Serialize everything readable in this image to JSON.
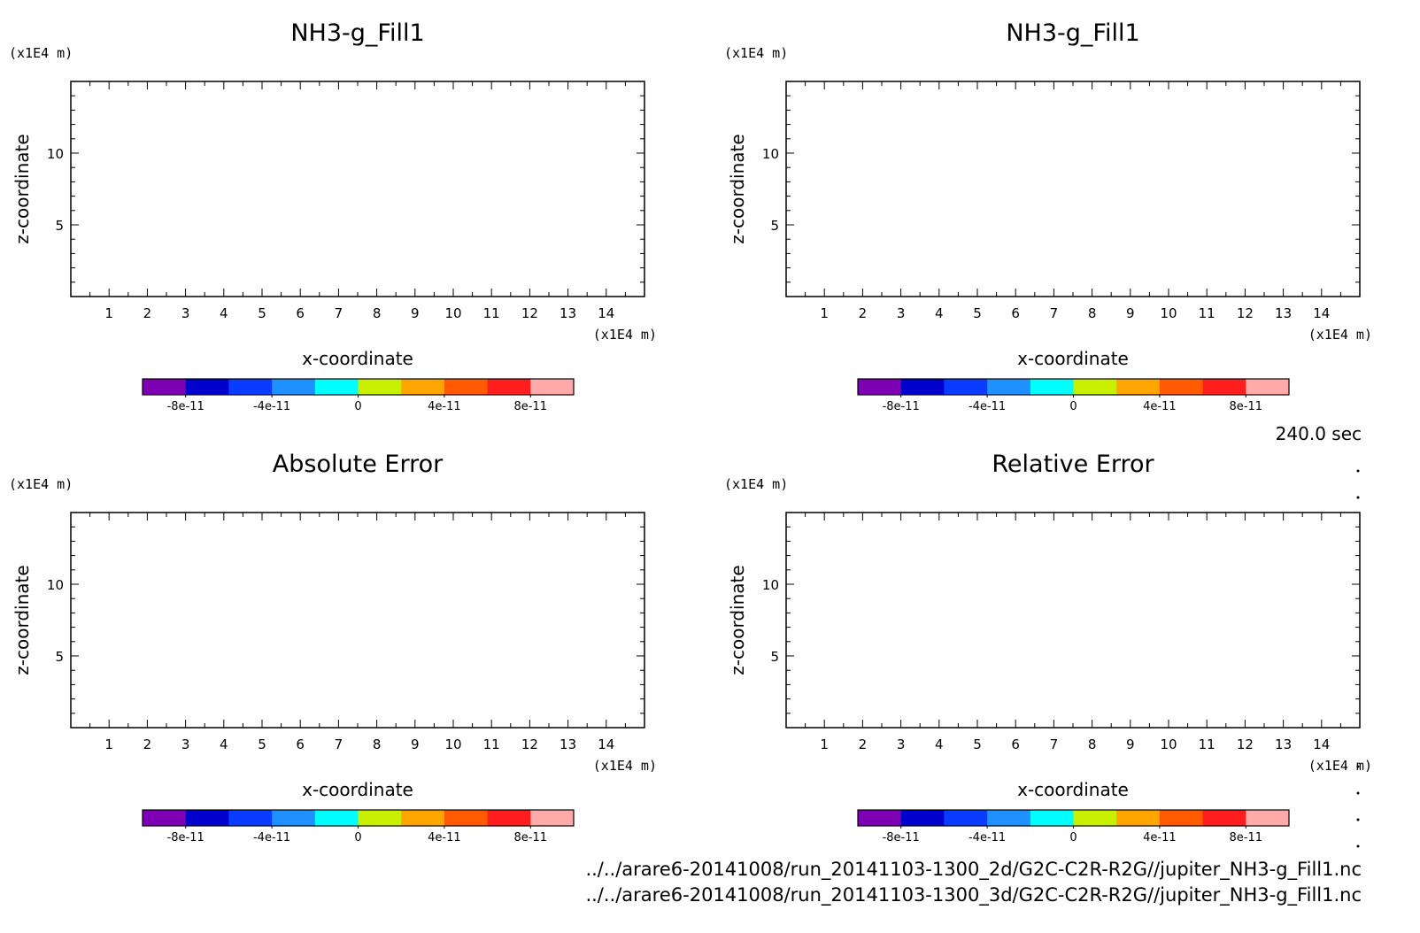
{
  "time_label": "240.0 sec",
  "file_paths": [
    "../../arare6-20141008/run_20141103-1300_2d/G2C-C2R-R2G//jupiter_NH3-g_Fill1.nc",
    "../../arare6-20141008/run_20141103-1300_3d/G2C-C2R-R2G//jupiter_NH3-g_Fill1.nc"
  ],
  "colorbar_colors": [
    "#7d00b4",
    "#0000cd",
    "#0a3cff",
    "#1e90ff",
    "#00ffff",
    "#c8f000",
    "#ffa500",
    "#ff5a00",
    "#ff1e1e",
    "#ffaaaa"
  ],
  "chart_data": [
    {
      "type": "heatmap",
      "title": "NH3-g_Fill1",
      "xlabel": "x-coordinate",
      "ylabel": "z-coordinate",
      "x_unit": "(x1E4 m)",
      "y_unit": "(x1E4 m)",
      "xlim": [
        0,
        15
      ],
      "ylim": [
        0,
        15
      ],
      "xticks": [
        1,
        2,
        3,
        4,
        5,
        6,
        7,
        8,
        9,
        10,
        11,
        12,
        13,
        14
      ],
      "yticks": [
        5,
        10
      ],
      "grid": false,
      "values": [],
      "colorbar": {
        "levels": [
          -1e-10,
          -8e-11,
          -6e-11,
          -4e-11,
          -2e-11,
          0,
          2e-11,
          4e-11,
          6e-11,
          8e-11,
          1e-10
        ],
        "tick_labels": [
          "-8e-11",
          "-4e-11",
          "0",
          "4e-11",
          "8e-11"
        ]
      }
    },
    {
      "type": "heatmap",
      "title": "NH3-g_Fill1",
      "xlabel": "x-coordinate",
      "ylabel": "z-coordinate",
      "x_unit": "(x1E4 m)",
      "y_unit": "(x1E4 m)",
      "xlim": [
        0,
        15
      ],
      "ylim": [
        0,
        15
      ],
      "xticks": [
        1,
        2,
        3,
        4,
        5,
        6,
        7,
        8,
        9,
        10,
        11,
        12,
        13,
        14
      ],
      "yticks": [
        5,
        10
      ],
      "grid": false,
      "values": [],
      "colorbar": {
        "levels": [
          -1e-10,
          -8e-11,
          -6e-11,
          -4e-11,
          -2e-11,
          0,
          2e-11,
          4e-11,
          6e-11,
          8e-11,
          1e-10
        ],
        "tick_labels": [
          "-8e-11",
          "-4e-11",
          "0",
          "4e-11",
          "8e-11"
        ]
      }
    },
    {
      "type": "heatmap",
      "title": "Absolute Error",
      "xlabel": "x-coordinate",
      "ylabel": "z-coordinate",
      "x_unit": "(x1E4 m)",
      "y_unit": "(x1E4 m)",
      "xlim": [
        0,
        15
      ],
      "ylim": [
        0,
        15
      ],
      "xticks": [
        1,
        2,
        3,
        4,
        5,
        6,
        7,
        8,
        9,
        10,
        11,
        12,
        13,
        14
      ],
      "yticks": [
        5,
        10
      ],
      "grid": false,
      "values": [],
      "colorbar": {
        "levels": [
          -1e-10,
          -8e-11,
          -6e-11,
          -4e-11,
          -2e-11,
          0,
          2e-11,
          4e-11,
          6e-11,
          8e-11,
          1e-10
        ],
        "tick_labels": [
          "-8e-11",
          "-4e-11",
          "0",
          "4e-11",
          "8e-11"
        ]
      }
    },
    {
      "type": "heatmap",
      "title": "Relative Error",
      "xlabel": "x-coordinate",
      "ylabel": "z-coordinate",
      "x_unit": "(x1E4 m)",
      "y_unit": "(x1E4 m)",
      "xlim": [
        0,
        15
      ],
      "ylim": [
        0,
        15
      ],
      "xticks": [
        1,
        2,
        3,
        4,
        5,
        6,
        7,
        8,
        9,
        10,
        11,
        12,
        13,
        14
      ],
      "yticks": [
        5,
        10
      ],
      "grid": false,
      "values": [],
      "colorbar": {
        "levels": [
          -1e-10,
          -8e-11,
          -6e-11,
          -4e-11,
          -2e-11,
          0,
          2e-11,
          4e-11,
          6e-11,
          8e-11,
          1e-10
        ],
        "tick_labels": [
          "-8e-11",
          "-4e-11",
          "0",
          "4e-11",
          "8e-11"
        ]
      }
    }
  ]
}
